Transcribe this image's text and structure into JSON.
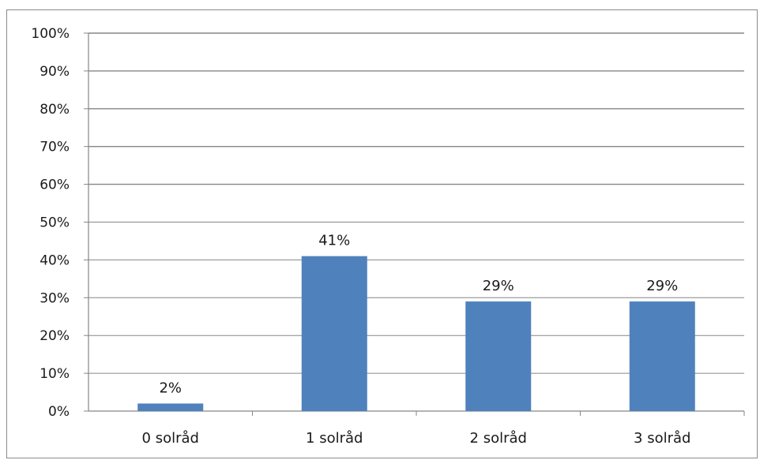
{
  "chart_data": {
    "type": "bar",
    "categories": [
      "0 solråd",
      "1 solråd",
      "2 solråd",
      "3 solråd"
    ],
    "values": [
      2,
      41,
      29,
      29
    ],
    "data_labels": [
      "2%",
      "41%",
      "29%",
      "29%"
    ],
    "yticks": [
      "0%",
      "10%",
      "20%",
      "30%",
      "40%",
      "50%",
      "60%",
      "70%",
      "80%",
      "90%",
      "100%"
    ],
    "ylim": [
      0,
      100
    ],
    "grid": true,
    "bar_color": "#4f81bd",
    "gridline_color": "#868686"
  }
}
